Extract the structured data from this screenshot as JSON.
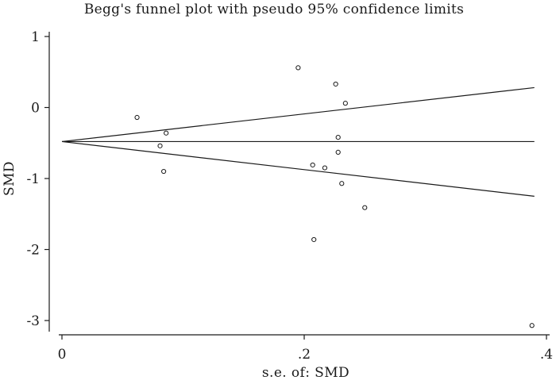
{
  "chart_data": {
    "type": "scatter",
    "title": "Begg's funnel plot with pseudo 95% confidence limits",
    "xlabel": "s.e. of: SMD",
    "ylabel": "SMD",
    "xlim": [
      0,
      0.4
    ],
    "ylim": [
      -3.1,
      1.1
    ],
    "x_ticks": [
      0,
      0.2,
      0.4
    ],
    "x_tick_labels": [
      "0",
      ".2",
      ".4"
    ],
    "y_ticks": [
      1,
      0,
      -1,
      -2,
      -3
    ],
    "y_tick_labels": [
      "1",
      "0",
      "-1",
      "-2",
      "-3"
    ],
    "grid": false,
    "pooled_estimate": -0.48,
    "limits": {
      "se": [
        0,
        0.39
      ],
      "upper": [
        -0.48,
        0.28
      ],
      "lower": [
        -0.48,
        -1.25
      ]
    },
    "points": [
      {
        "x": 0.062,
        "y": -0.14
      },
      {
        "x": 0.081,
        "y": -0.54
      },
      {
        "x": 0.086,
        "y": -0.36
      },
      {
        "x": 0.084,
        "y": -0.9
      },
      {
        "x": 0.195,
        "y": 0.56
      },
      {
        "x": 0.226,
        "y": 0.33
      },
      {
        "x": 0.234,
        "y": 0.06
      },
      {
        "x": 0.228,
        "y": -0.42
      },
      {
        "x": 0.228,
        "y": -0.63
      },
      {
        "x": 0.207,
        "y": -0.81
      },
      {
        "x": 0.217,
        "y": -0.85
      },
      {
        "x": 0.231,
        "y": -1.07
      },
      {
        "x": 0.25,
        "y": -1.41
      },
      {
        "x": 0.208,
        "y": -1.86
      },
      {
        "x": 0.388,
        "y": -3.07
      }
    ]
  }
}
